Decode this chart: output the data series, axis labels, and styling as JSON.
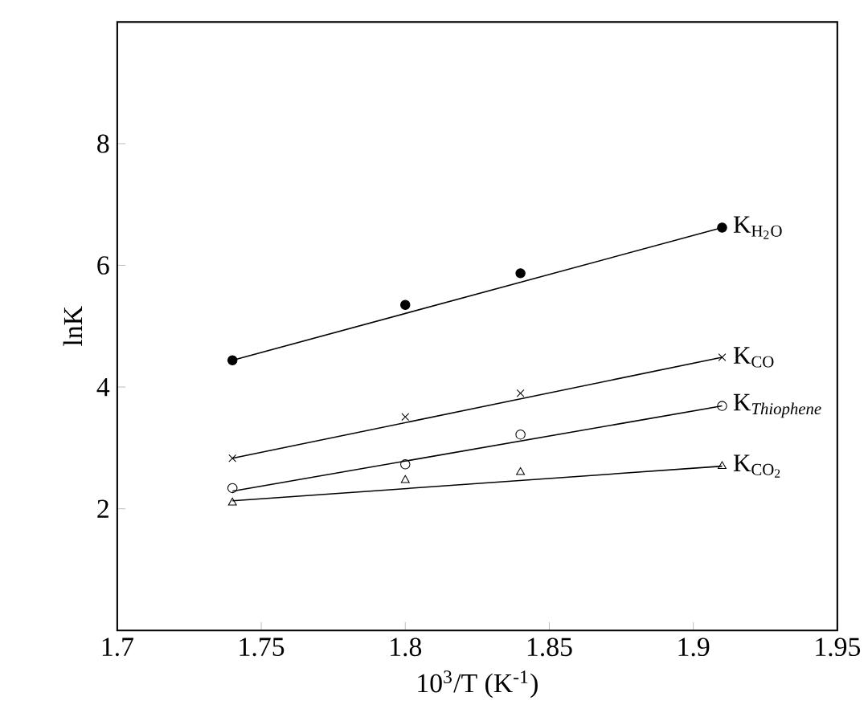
{
  "chart_data": {
    "type": "scatter",
    "xlabel": "10$^{3}$/T (K$^{-1}$)",
    "ylabel": "lnK",
    "xlim": [
      1.7,
      1.95
    ],
    "ylim": [
      0,
      10
    ],
    "xticks": [
      1.7,
      1.75,
      1.8,
      1.85,
      1.9,
      1.95
    ],
    "yticks": [
      2,
      4,
      6,
      8
    ],
    "legend": false,
    "grid": false,
    "series": [
      {
        "name": "\\mathrm{K}_{\\mathrm{H_2O}}",
        "color": "#000000",
        "marker": "circle",
        "x": [
          1.74,
          1.8,
          1.84,
          1.91
        ],
        "values": [
          4.44,
          5.35,
          5.87,
          6.62
        ]
      },
      {
        "name": "\\mathrm{K}_{\\mathrm{CO}}",
        "color": "#000000",
        "marker": "cross",
        "x": [
          1.74,
          1.8,
          1.84,
          1.91
        ],
        "values": [
          2.83,
          3.51,
          3.9,
          4.49
        ]
      },
      {
        "name": "\\mathrm{K}_{\\mathit{Thiophene}}",
        "color": "#000000",
        "marker": "circle_open",
        "x": [
          1.74,
          1.8,
          1.84,
          1.91
        ],
        "values": [
          2.34,
          2.73,
          3.22,
          3.69
        ]
      },
      {
        "name": "\\mathrm{K}_{\\mathrm{CO_2}}",
        "color": "#000000",
        "marker": "triangle",
        "x": [
          1.74,
          1.8,
          1.84,
          1.91
        ],
        "values": [
          2.1,
          2.47,
          2.6,
          2.7
        ]
      },
      {
        "type": "line",
        "color": "#000000",
        "marker": "none",
        "x": [
          1.74,
          1.91
        ],
        "values": [
          4.44,
          6.62
        ]
      },
      {
        "type": "line",
        "color": "#000000",
        "marker": "none",
        "x": [
          1.74,
          1.91
        ],
        "values": [
          2.83,
          4.49
        ]
      },
      {
        "type": "line",
        "color": "#000000",
        "marker": "none",
        "x": [
          1.74,
          1.91
        ],
        "values": [
          2.29,
          3.69
        ]
      },
      {
        "type": "line",
        "color": "#000000",
        "marker": "none",
        "x": [
          1.74,
          1.91
        ],
        "values": [
          2.13,
          2.7
        ]
      }
    ]
  }
}
